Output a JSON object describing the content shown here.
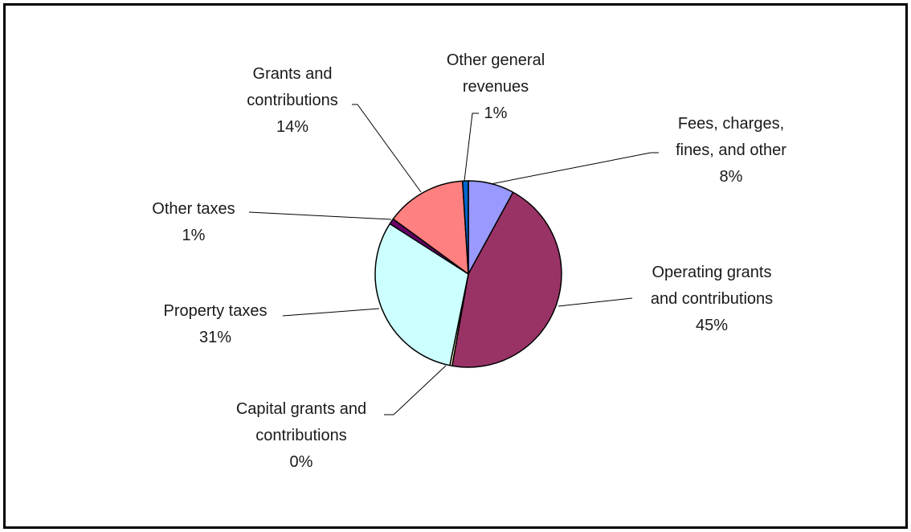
{
  "chart_data": {
    "type": "pie",
    "title": "",
    "slices": [
      {
        "label_lines": [
          "Fees, charges,",
          "fines, and other"
        ],
        "value": 8,
        "value_label": "8%",
        "color": "#9999ff"
      },
      {
        "label_lines": [
          "Operating grants",
          "and contributions"
        ],
        "value": 45,
        "value_label": "45%",
        "color": "#993366"
      },
      {
        "label_lines": [
          "Capital grants and",
          "contributions"
        ],
        "value": 0.4,
        "value_label": "0%",
        "color": "#ffffcc"
      },
      {
        "label_lines": [
          "Property taxes"
        ],
        "value": 31,
        "value_label": "31%",
        "color": "#ccffff"
      },
      {
        "label_lines": [
          "Other taxes"
        ],
        "value": 1,
        "value_label": "1%",
        "color": "#660066"
      },
      {
        "label_lines": [
          "Grants and",
          "contributions"
        ],
        "value": 14,
        "value_label": "14%",
        "color": "#ff8080"
      },
      {
        "label_lines": [
          "Other general",
          "revenues"
        ],
        "value": 1,
        "value_label": "1%",
        "color": "#0066cc"
      }
    ],
    "start_angle_deg": 90,
    "direction": "clockwise",
    "legend": "none"
  }
}
